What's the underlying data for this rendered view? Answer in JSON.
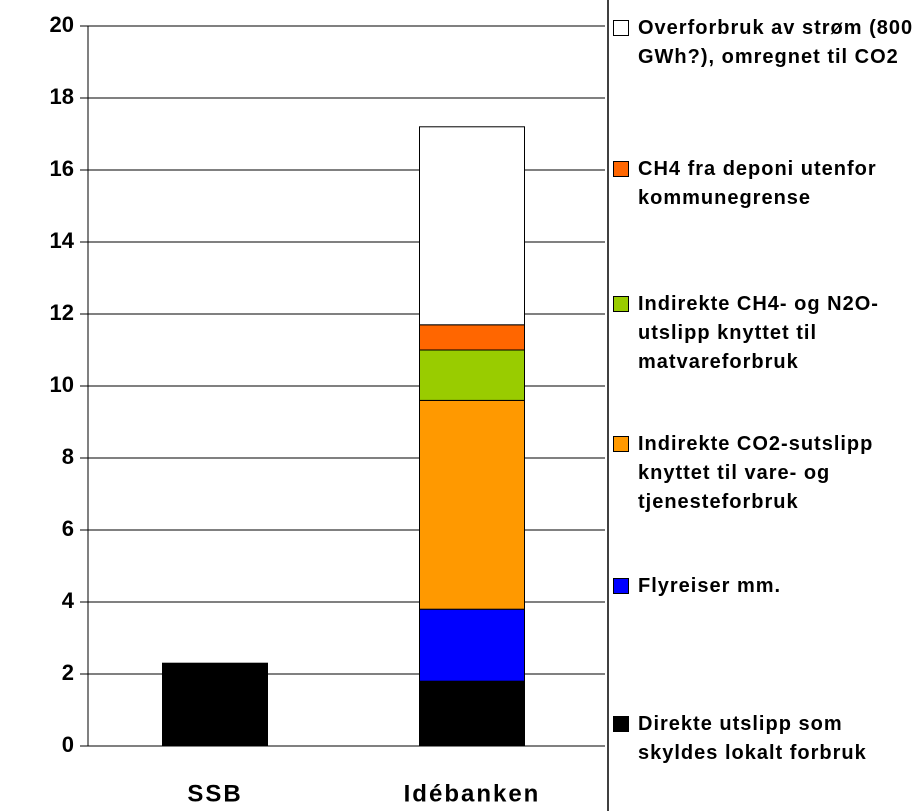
{
  "chart_data": {
    "type": "stacked_bar",
    "categories": [
      "SSB",
      "Idébanken"
    ],
    "series": [
      {
        "name": "Direkte utslipp som skyldes lokalt forbruk",
        "color": "#000000",
        "values": [
          2.3,
          1.8
        ]
      },
      {
        "name": "Flyreiser mm.",
        "color": "#0000ff",
        "values": [
          0,
          2.0
        ]
      },
      {
        "name": "Indirekte CO2-sutslipp knyttet til vare- og tjenesteforbruk",
        "color": "#ff9900",
        "values": [
          0,
          5.8
        ]
      },
      {
        "name": "Indirekte CH4- og N2O-utslipp knyttet til matvareforbruk",
        "color": "#99cc00",
        "values": [
          0,
          1.4
        ]
      },
      {
        "name": "CH4 fra deponi utenfor kommunegrense",
        "color": "#ff6600",
        "values": [
          0,
          0.7
        ]
      },
      {
        "name": "Overforbruk av strøm (800 GWh?), omregnet til CO2",
        "color": "#ffffff",
        "values": [
          0,
          5.5
        ]
      }
    ],
    "ylim": [
      0,
      20
    ],
    "yticks": [
      0,
      2,
      4,
      6,
      8,
      10,
      12,
      14,
      16,
      18,
      20
    ],
    "grid": true
  }
}
